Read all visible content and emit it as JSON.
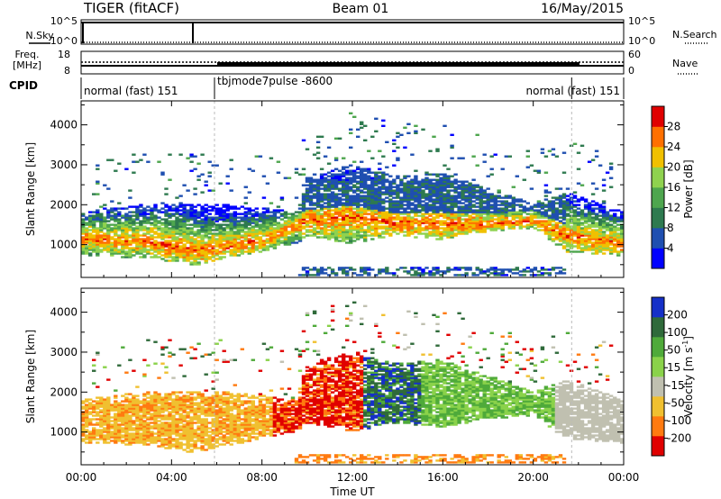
{
  "header": {
    "station": "TIGER (fitACF)",
    "beam": "Beam 01",
    "date": "16/May/2015"
  },
  "top_panels": {
    "nsky_label": "N.Sky",
    "nsky_ticks": [
      "10^5",
      "10^0"
    ],
    "nsearch_label": "N.Search",
    "nsearch_ticks": [
      "10^5",
      "10^0"
    ],
    "freq_label": "Freq.",
    "freq_unit": "[MHz]",
    "freq_ticks": [
      "18",
      "8"
    ],
    "nave_label": "Nave",
    "nave_ticks": [
      "60",
      "0"
    ],
    "cpid_label": "CPID",
    "cpid_segments": [
      {
        "label": "normal (fast) 151",
        "start": 0.0,
        "end": 5.9
      },
      {
        "label": "tbjmode7pulse -8600",
        "start": 5.9,
        "end": 21.7
      },
      {
        "label": "normal (fast) 151",
        "start": 21.7,
        "end": 24.0
      }
    ]
  },
  "chart_data": [
    {
      "type": "heatmap",
      "name": "power",
      "ylabel": "Slant Range [km]",
      "yticks": [
        "4000",
        "3000",
        "2000",
        "1000"
      ],
      "ylim": [
        180,
        4600
      ],
      "xlim": [
        0,
        24
      ],
      "colorbar_label": "Power [dB]",
      "colorbar_ticks": [
        "28",
        "24",
        "20",
        "16",
        "12",
        "8",
        "4"
      ],
      "colorscale": [
        "#0000ff",
        "#1f4fb0",
        "#2e7a4f",
        "#4ea64e",
        "#8fd24f",
        "#f0c000",
        "#ff7000",
        "#e00000"
      ],
      "clim": [
        0,
        32
      ]
    },
    {
      "type": "heatmap",
      "name": "velocity",
      "ylabel": "Slant Range [km]",
      "yticks": [
        "4000",
        "3000",
        "2000",
        "1000"
      ],
      "ylim": [
        180,
        4600
      ],
      "xlim": [
        0,
        24
      ],
      "colorbar_label": "Velocity [m s",
      "colorbar_label_sup": "-1",
      "colorbar_label_end": "]",
      "colorbar_ticks": [
        "200",
        "100",
        "50",
        "15",
        "-15",
        "-50",
        "-100",
        "-200"
      ],
      "colorscale": [
        "#1530c8",
        "#2f6a3a",
        "#4faa3a",
        "#8ad24a",
        "#c0c0b0",
        "#f0c030",
        "#ff7a10",
        "#e00000"
      ],
      "clim": [
        -250,
        250
      ]
    }
  ],
  "xaxis": {
    "ticks": [
      "00:00",
      "04:00",
      "08:00",
      "12:00",
      "16:00",
      "20:00",
      "00:00"
    ],
    "label": "Time UT"
  }
}
